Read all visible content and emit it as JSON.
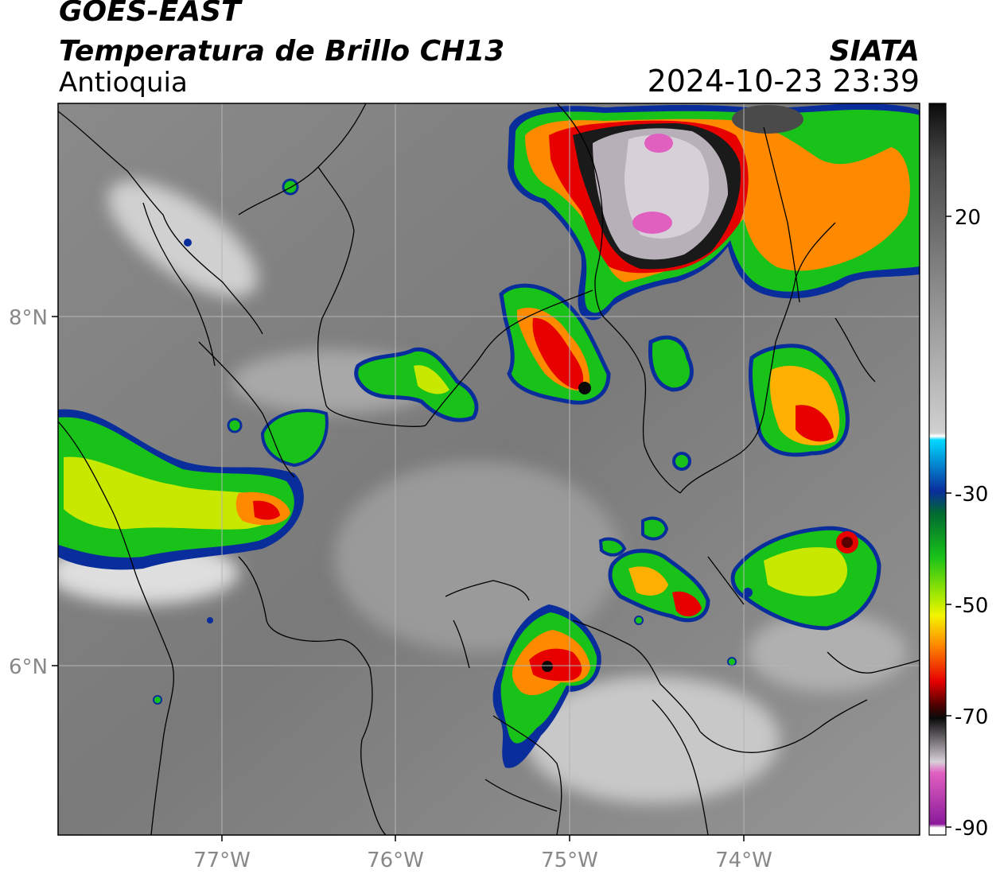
{
  "header": {
    "satellite": "GOES-EAST",
    "product": "Temperatura de Brillo CH13",
    "region": "Antioquia",
    "agency": "SIATA",
    "timestamp": "2024-10-23 23:39"
  },
  "axes": {
    "lon_ticks": [
      "77°W",
      "76°W",
      "75°W",
      "74°W"
    ],
    "lat_ticks": [
      "8°N",
      "6°N"
    ]
  },
  "colorbar": {
    "labels": [
      "20",
      "-30",
      "-50",
      "-70",
      "-90"
    ],
    "colors": {
      "gray_high": "#3a3a3a",
      "gray_low": "#f5f5f5",
      "cyan": "#00d8ff",
      "blue": "#0a2d9c",
      "green": "#19c219",
      "yellow": "#f4f400",
      "orange": "#ff8a00",
      "red": "#e60000",
      "dark_red": "#5a0000",
      "black": "#0a0a0a",
      "magenta": "#e060c0",
      "purple": "#8a1a9a"
    }
  }
}
